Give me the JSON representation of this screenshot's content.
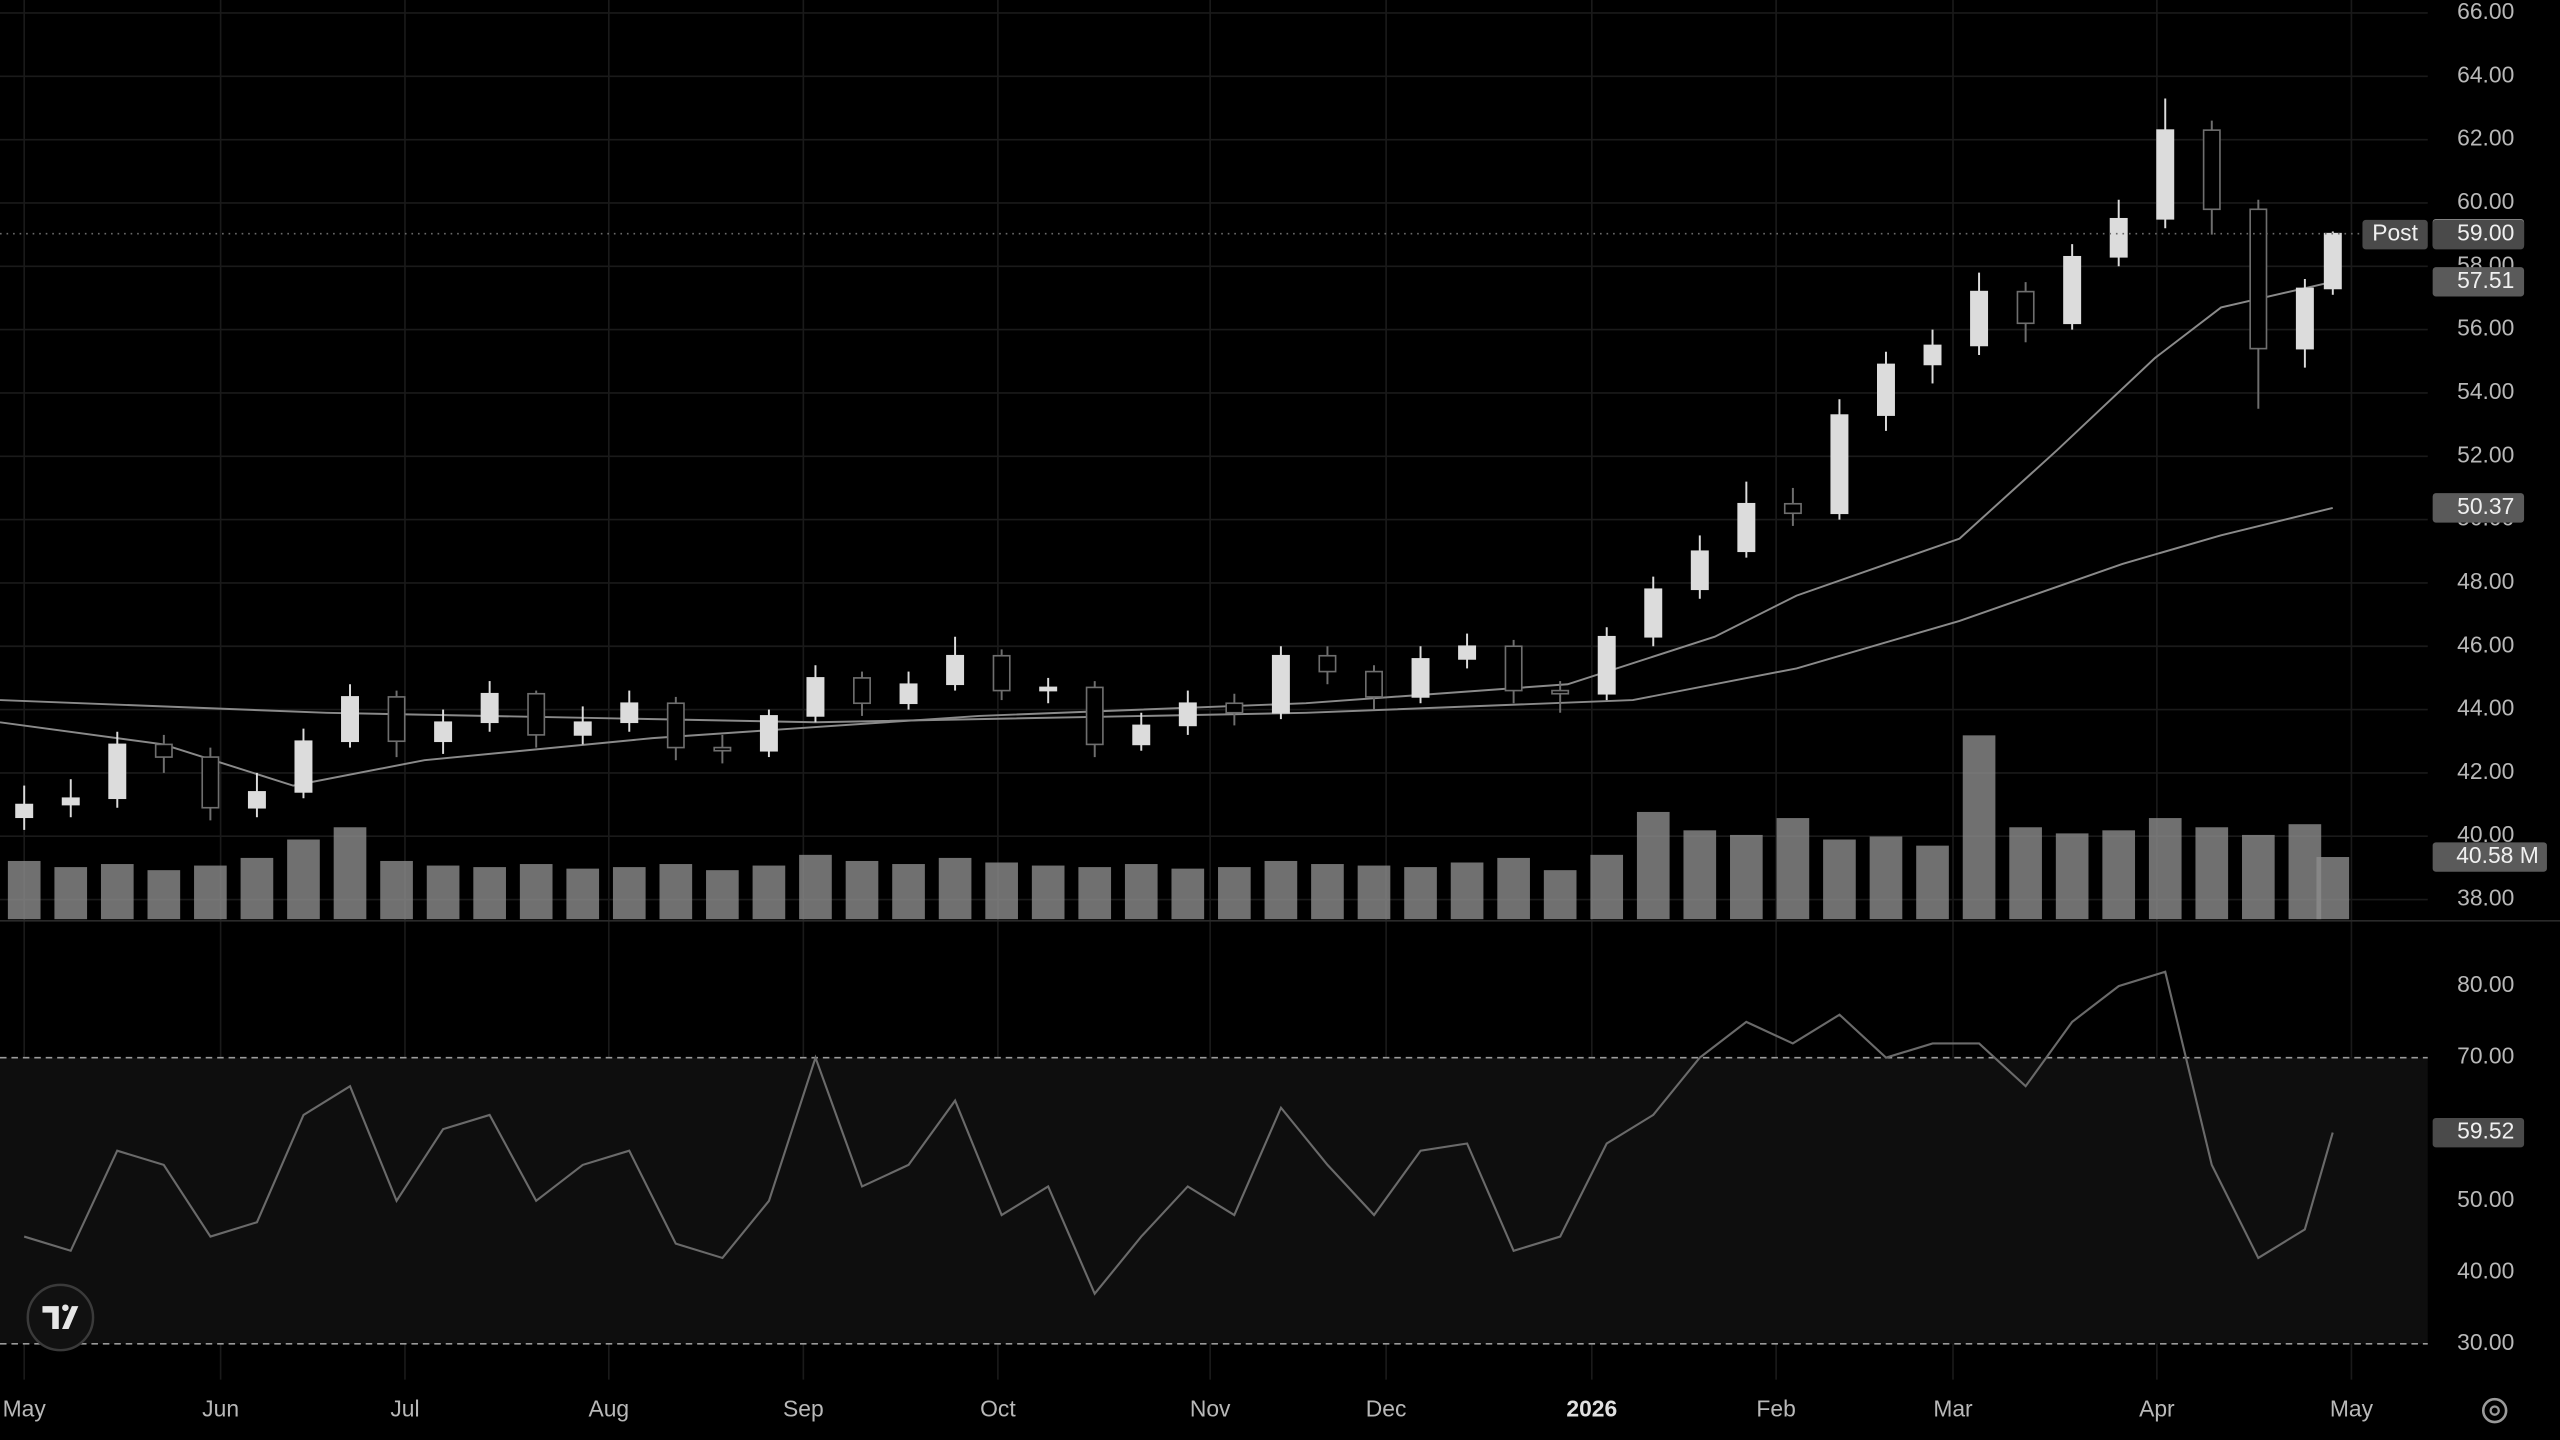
{
  "chart_data": [
    {
      "type": "candlestick",
      "x": [
        0,
        5,
        10,
        15,
        20,
        25,
        30,
        35,
        40,
        45,
        50,
        55,
        60,
        65,
        70,
        75,
        80,
        85,
        90,
        95,
        100,
        105,
        110,
        115,
        120,
        125,
        130,
        135,
        140,
        145,
        150,
        155,
        160,
        165,
        170,
        175,
        180,
        185,
        190,
        195,
        200,
        205,
        210,
        215,
        220,
        225,
        230,
        235,
        240,
        245,
        248
      ],
      "open": [
        40.6,
        41.0,
        41.2,
        42.9,
        42.5,
        40.9,
        41.4,
        43.0,
        44.4,
        43.0,
        43.6,
        44.5,
        43.2,
        43.6,
        44.2,
        42.8,
        42.7,
        43.8,
        45.0,
        44.2,
        44.8,
        45.7,
        44.6,
        44.7,
        42.9,
        43.5,
        44.2,
        43.9,
        45.7,
        45.2,
        44.4,
        45.6,
        46.0,
        44.6,
        44.5,
        46.3,
        47.8,
        49.0,
        50.5,
        50.2,
        53.3,
        54.9,
        55.5,
        57.2,
        56.2,
        58.3,
        59.5,
        62.3,
        59.8,
        55.4,
        57.3
      ],
      "high": [
        41.6,
        41.8,
        43.3,
        43.2,
        42.8,
        42.0,
        43.4,
        44.8,
        44.6,
        44.0,
        44.9,
        44.6,
        44.1,
        44.6,
        44.4,
        43.2,
        44.0,
        45.4,
        45.2,
        45.2,
        46.3,
        45.9,
        45.0,
        44.9,
        43.9,
        44.6,
        44.5,
        46.0,
        46.0,
        45.4,
        46.0,
        46.4,
        46.2,
        44.9,
        46.6,
        48.2,
        49.5,
        51.2,
        51.0,
        53.8,
        55.3,
        56.0,
        57.8,
        57.5,
        58.7,
        60.1,
        63.3,
        62.6,
        60.1,
        57.6,
        59.1
      ],
      "low": [
        40.2,
        40.6,
        40.9,
        42.0,
        40.5,
        40.6,
        41.2,
        42.8,
        42.5,
        42.6,
        43.3,
        42.8,
        42.9,
        43.3,
        42.4,
        42.3,
        42.5,
        43.6,
        43.8,
        44.0,
        44.6,
        44.3,
        44.2,
        42.5,
        42.7,
        43.2,
        43.5,
        43.7,
        44.8,
        44.0,
        44.2,
        45.3,
        44.2,
        43.9,
        44.3,
        46.0,
        47.5,
        48.8,
        49.8,
        50.0,
        52.8,
        54.3,
        55.2,
        55.6,
        56.0,
        58.0,
        59.2,
        59.0,
        53.5,
        54.8,
        57.1
      ],
      "close": [
        41.0,
        41.2,
        42.9,
        42.5,
        40.9,
        41.4,
        43.0,
        44.4,
        43.0,
        43.6,
        44.5,
        43.2,
        43.6,
        44.2,
        42.8,
        42.7,
        43.8,
        45.0,
        44.2,
        44.8,
        45.7,
        44.6,
        44.7,
        42.9,
        43.5,
        44.2,
        43.9,
        45.7,
        45.2,
        44.4,
        45.6,
        46.0,
        44.6,
        44.5,
        46.3,
        47.8,
        49.0,
        50.5,
        50.2,
        53.3,
        54.9,
        55.5,
        57.2,
        56.2,
        58.3,
        59.5,
        62.3,
        59.8,
        55.4,
        57.3,
        59.03
      ],
      "up_color": "#dcdcdc",
      "down_color": "#6e6e6e",
      "xlim": [
        -2.6,
        258.2
      ],
      "xticks": [
        {
          "value": 0,
          "label": "May"
        },
        {
          "value": 21.1,
          "label": "Jun"
        },
        {
          "value": 40.9,
          "label": "Jul"
        },
        {
          "value": 62.8,
          "label": "Aug"
        },
        {
          "value": 83.7,
          "label": "Sep"
        },
        {
          "value": 104.6,
          "label": "Oct"
        },
        {
          "value": 127.4,
          "label": "Nov"
        },
        {
          "value": 146.3,
          "label": "Dec"
        },
        {
          "value": 168.4,
          "label": "2026"
        },
        {
          "value": 188.2,
          "label": "Feb"
        },
        {
          "value": 207.2,
          "label": "Mar"
        },
        {
          "value": 229.1,
          "label": "Apr"
        },
        {
          "value": 250,
          "label": "May"
        }
      ],
      "ylim": [
        37.38,
        66.41
      ],
      "yticks": [
        {
          "value": 38,
          "label": "38.00"
        },
        {
          "value": 40,
          "label": "40.00"
        },
        {
          "value": 42,
          "label": "42.00"
        },
        {
          "value": 44,
          "label": "44.00"
        },
        {
          "value": 46,
          "label": "46.00"
        },
        {
          "value": 48,
          "label": "48.00"
        },
        {
          "value": 50,
          "label": "50.00"
        },
        {
          "value": 52,
          "label": "52.00"
        },
        {
          "value": 54,
          "label": "54.00"
        },
        {
          "value": 56,
          "label": "56.00"
        },
        {
          "value": 58,
          "label": "58.00"
        },
        {
          "value": 60,
          "label": "60.00"
        },
        {
          "value": 62,
          "label": "62.00"
        },
        {
          "value": 64,
          "label": "64.00"
        },
        {
          "value": 66,
          "label": "66.00"
        }
      ],
      "grid": true,
      "moving_averages": [
        {
          "color": "#8a8a8a",
          "x": [
            -2.6,
            14.9,
            28.9,
            43,
            67.5,
            102.6,
            137.7,
            165.8,
            181.6,
            190.4,
            207.9,
            218.4,
            228.9,
            236,
            248
          ],
          "values": [
            43.6,
            42.9,
            41.6,
            42.4,
            43.1,
            43.8,
            44.2,
            44.8,
            46.3,
            47.6,
            49.4,
            52.2,
            55.1,
            56.7,
            57.51
          ]
        },
        {
          "color": "#8a8a8a",
          "x": [
            -2.6,
            32.5,
            85,
            137.7,
            172.8,
            190.4,
            207.9,
            225.4,
            236,
            248
          ],
          "values": [
            44.3,
            43.9,
            43.6,
            43.9,
            44.3,
            45.3,
            46.8,
            48.6,
            49.5,
            50.37
          ]
        }
      ],
      "post_market": {
        "label": "Post",
        "price": {
          "value": 59,
          "label": "59.00"
        }
      },
      "volume": {
        "color": "#8c8c8c",
        "ylim": [
          0,
          600
        ],
        "values": [
          38,
          34,
          36,
          32,
          35,
          40,
          52,
          60,
          38,
          35,
          34,
          36,
          33,
          34,
          36,
          32,
          35,
          42,
          38,
          36,
          40,
          37,
          35,
          34,
          36,
          33,
          34,
          38,
          36,
          35,
          34,
          37,
          40,
          32,
          42,
          70,
          58,
          55,
          66,
          52,
          54,
          48,
          120,
          60,
          56,
          58,
          66,
          60,
          55,
          62,
          40.58
        ],
        "value_labels": [
          null,
          null,
          null,
          null,
          null,
          null,
          null,
          null,
          null,
          null,
          null,
          null,
          null,
          null,
          null,
          null,
          null,
          null,
          null,
          null,
          null,
          null,
          null,
          null,
          null,
          null,
          null,
          null,
          null,
          null,
          null,
          null,
          null,
          null,
          null,
          null,
          null,
          null,
          null,
          null,
          null,
          null,
          null,
          null,
          null,
          null,
          null,
          null,
          null,
          null,
          "40.58 M"
        ]
      }
    },
    {
      "type": "line",
      "x": [
        0,
        5,
        10,
        15,
        20,
        25,
        30,
        35,
        40,
        45,
        50,
        55,
        60,
        65,
        70,
        75,
        80,
        85,
        90,
        95,
        100,
        105,
        110,
        115,
        120,
        125,
        130,
        135,
        140,
        145,
        150,
        155,
        160,
        165,
        170,
        175,
        180,
        185,
        190,
        195,
        200,
        205,
        210,
        215,
        220,
        225,
        230,
        235,
        240,
        245,
        248
      ],
      "values": [
        45,
        43,
        57,
        55,
        45,
        47,
        62,
        66,
        50,
        60,
        62,
        50,
        55,
        57,
        44,
        42,
        50,
        70,
        52,
        55,
        64,
        48,
        52,
        37,
        45,
        52,
        48,
        63,
        55,
        48,
        57,
        58,
        43,
        45,
        58,
        62,
        70,
        75,
        72,
        76,
        70,
        72,
        72,
        66,
        75,
        80,
        82,
        55,
        42,
        46,
        59.52
      ],
      "color": "#6a6a6a",
      "ylim": [
        25,
        88.9
      ],
      "yticks": [
        {
          "value": 30,
          "label": "30.00"
        },
        {
          "value": 40,
          "label": "40.00"
        },
        {
          "value": 50,
          "label": "50.00"
        },
        {
          "value": 70,
          "label": "70.00"
        },
        {
          "value": 80,
          "label": "80.00"
        }
      ],
      "bands": [
        30,
        70
      ]
    }
  ]
}
